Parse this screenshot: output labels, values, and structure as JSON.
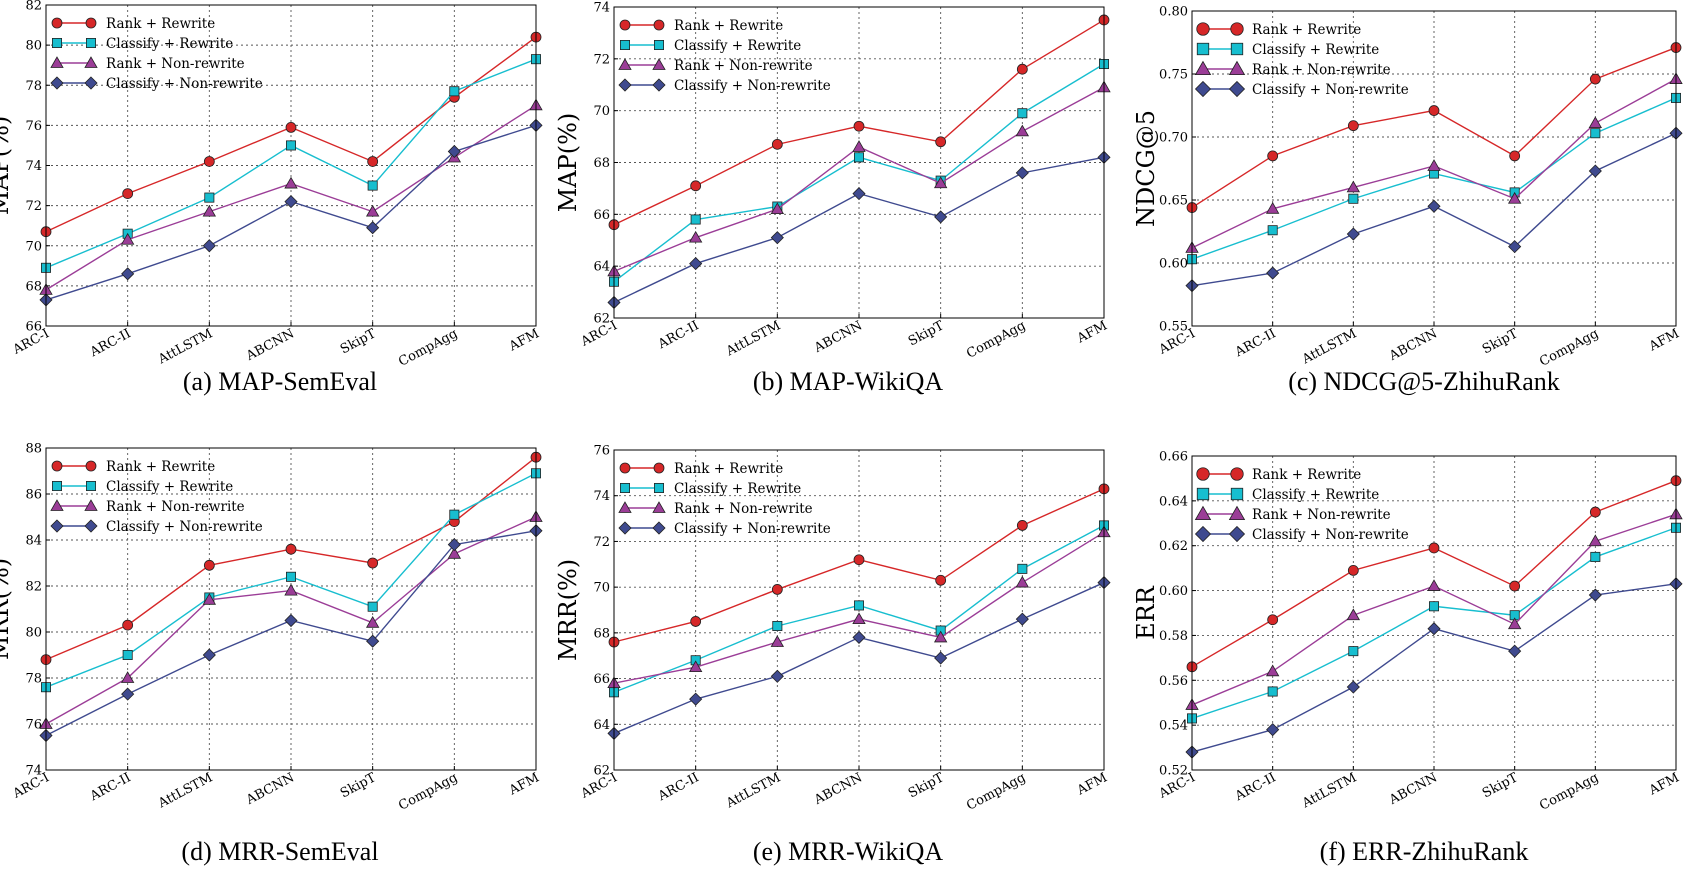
{
  "colors": {
    "rank_rewrite": "#d62728",
    "classify_rewrite": "#17becf",
    "rank_nonrewrite": "#9b3d97",
    "classify_nonrewrite": "#3f4a8f"
  },
  "chart_data": [
    {
      "type": "line",
      "title": "(a) MAP-SemEval",
      "ylabel": "MAP(%)",
      "xlabel": "",
      "categories": [
        "ARC-I",
        "ARC-II",
        "AttLSTM",
        "ABCNN",
        "SkipT",
        "CompAgg",
        "AFM"
      ],
      "ylim": [
        66,
        82
      ],
      "yticks": [
        66,
        68,
        70,
        72,
        74,
        76,
        78,
        80,
        82
      ],
      "ytick_labels": [
        "66",
        "68",
        "70",
        "72",
        "74",
        "76",
        "78",
        "80",
        "82"
      ],
      "grid": true,
      "legend_position": "top-left",
      "series": [
        {
          "name": "Rank + Rewrite",
          "marker": "circle",
          "values": [
            70.7,
            72.6,
            74.2,
            75.9,
            74.2,
            77.4,
            80.4
          ]
        },
        {
          "name": "Classify + Rewrite",
          "marker": "square",
          "values": [
            68.9,
            70.6,
            72.4,
            75.0,
            73.0,
            77.7,
            79.3
          ]
        },
        {
          "name": "Rank + Non-rewrite",
          "marker": "triangle",
          "values": [
            67.8,
            70.3,
            71.7,
            73.1,
            71.7,
            74.4,
            77.0
          ]
        },
        {
          "name": "Classify + Non-rewrite",
          "marker": "diamond",
          "values": [
            67.3,
            68.6,
            70.0,
            72.2,
            70.9,
            74.7,
            76.0
          ]
        }
      ]
    },
    {
      "type": "line",
      "title": "(b) MAP-WikiQA",
      "ylabel": "MAP(%)",
      "xlabel": "",
      "categories": [
        "ARC-I",
        "ARC-II",
        "AttLSTM",
        "ABCNN",
        "SkipT",
        "CompAgg",
        "AFM"
      ],
      "ylim": [
        62,
        74
      ],
      "yticks": [
        62,
        64,
        66,
        68,
        70,
        72,
        74
      ],
      "ytick_labels": [
        "62",
        "64",
        "66",
        "68",
        "70",
        "72",
        "74"
      ],
      "grid": true,
      "legend_position": "top-left",
      "series": [
        {
          "name": "Rank + Rewrite",
          "marker": "circle",
          "values": [
            65.6,
            67.1,
            68.7,
            69.4,
            68.8,
            71.6,
            73.5
          ]
        },
        {
          "name": "Classify + Rewrite",
          "marker": "square",
          "values": [
            63.4,
            65.8,
            66.3,
            68.2,
            67.3,
            69.9,
            71.8
          ]
        },
        {
          "name": "Rank + Non-rewrite",
          "marker": "triangle",
          "values": [
            63.8,
            65.1,
            66.2,
            68.6,
            67.2,
            69.2,
            70.9
          ]
        },
        {
          "name": "Classify + Non-rewrite",
          "marker": "diamond",
          "values": [
            62.6,
            64.1,
            65.1,
            66.8,
            65.9,
            67.6,
            68.2
          ]
        }
      ]
    },
    {
      "type": "line",
      "title": "(c) NDCG@5-ZhihuRank",
      "ylabel": "NDCG@5",
      "xlabel": "",
      "categories": [
        "ARC-I",
        "ARC-II",
        "AttLSTM",
        "ABCNN",
        "SkipT",
        "CompAgg",
        "AFM"
      ],
      "ylim": [
        0.55,
        0.8
      ],
      "yticks": [
        0.55,
        0.6,
        0.65,
        0.7,
        0.75,
        0.8
      ],
      "ytick_labels": [
        "0.55",
        "0.60",
        "0.65",
        "0.70",
        "0.75",
        "0.80"
      ],
      "grid": true,
      "legend_position": "top-left",
      "series": [
        {
          "name": "Rank + Rewrite",
          "marker": "circle",
          "values": [
            0.644,
            0.685,
            0.709,
            0.721,
            0.685,
            0.746,
            0.771
          ]
        },
        {
          "name": "Classify + Rewrite",
          "marker": "square",
          "values": [
            0.603,
            0.626,
            0.651,
            0.671,
            0.656,
            0.703,
            0.731
          ]
        },
        {
          "name": "Rank + Non-rewrite",
          "marker": "triangle",
          "values": [
            0.612,
            0.643,
            0.66,
            0.677,
            0.651,
            0.711,
            0.746
          ]
        },
        {
          "name": "Classify + Non-rewrite",
          "marker": "diamond",
          "values": [
            0.582,
            0.592,
            0.623,
            0.645,
            0.613,
            0.673,
            0.703
          ]
        }
      ]
    },
    {
      "type": "line",
      "title": "(d) MRR-SemEval",
      "ylabel": "MRR(%)",
      "xlabel": "",
      "categories": [
        "ARC-I",
        "ARC-II",
        "AttLSTM",
        "ABCNN",
        "SkipT",
        "CompAgg",
        "AFM"
      ],
      "ylim": [
        74,
        88
      ],
      "yticks": [
        74,
        76,
        78,
        80,
        82,
        84,
        86,
        88
      ],
      "ytick_labels": [
        "74",
        "76",
        "78",
        "80",
        "82",
        "84",
        "86",
        "88"
      ],
      "grid": true,
      "legend_position": "top-left",
      "series": [
        {
          "name": "Rank + Rewrite",
          "marker": "circle",
          "values": [
            78.8,
            80.3,
            82.9,
            83.6,
            83.0,
            84.8,
            87.6
          ]
        },
        {
          "name": "Classify + Rewrite",
          "marker": "square",
          "values": [
            77.6,
            79.0,
            81.5,
            82.4,
            81.1,
            85.1,
            86.9
          ]
        },
        {
          "name": "Rank + Non-rewrite",
          "marker": "triangle",
          "values": [
            76.0,
            78.0,
            81.4,
            81.8,
            80.4,
            83.4,
            85.0
          ]
        },
        {
          "name": "Classify + Non-rewrite",
          "marker": "diamond",
          "values": [
            75.5,
            77.3,
            79.0,
            80.5,
            79.6,
            83.8,
            84.4
          ]
        }
      ]
    },
    {
      "type": "line",
      "title": "(e) MRR-WikiQA",
      "ylabel": "MRR(%)",
      "xlabel": "",
      "categories": [
        "ARC-I",
        "ARC-II",
        "AttLSTM",
        "ABCNN",
        "SkipT",
        "CompAgg",
        "AFM"
      ],
      "ylim": [
        62,
        76
      ],
      "yticks": [
        62,
        64,
        66,
        68,
        70,
        72,
        74,
        76
      ],
      "ytick_labels": [
        "62",
        "64",
        "66",
        "68",
        "70",
        "72",
        "74",
        "76"
      ],
      "grid": true,
      "legend_position": "top-left",
      "series": [
        {
          "name": "Rank + Rewrite",
          "marker": "circle",
          "values": [
            67.6,
            68.5,
            69.9,
            71.2,
            70.3,
            72.7,
            74.3
          ]
        },
        {
          "name": "Classify + Rewrite",
          "marker": "square",
          "values": [
            65.4,
            66.8,
            68.3,
            69.2,
            68.1,
            70.8,
            72.7
          ]
        },
        {
          "name": "Rank + Non-rewrite",
          "marker": "triangle",
          "values": [
            65.8,
            66.5,
            67.6,
            68.6,
            67.8,
            70.2,
            72.4
          ]
        },
        {
          "name": "Classify + Non-rewrite",
          "marker": "diamond",
          "values": [
            63.6,
            65.1,
            66.1,
            67.8,
            66.9,
            68.6,
            70.2
          ]
        }
      ]
    },
    {
      "type": "line",
      "title": "(f) ERR-ZhihuRank",
      "ylabel": "ERR",
      "xlabel": "",
      "categories": [
        "ARC-I",
        "ARC-II",
        "AttLSTM",
        "ABCNN",
        "SkipT",
        "CompAgg",
        "AFM"
      ],
      "ylim": [
        0.52,
        0.66
      ],
      "yticks": [
        0.52,
        0.54,
        0.56,
        0.58,
        0.6,
        0.62,
        0.64,
        0.66
      ],
      "ytick_labels": [
        "0.52",
        "0.54",
        "0.56",
        "0.58",
        "0.60",
        "0.62",
        "0.64",
        "0.66"
      ],
      "grid": true,
      "legend_position": "top-left",
      "series": [
        {
          "name": "Rank + Rewrite",
          "marker": "circle",
          "values": [
            0.566,
            0.587,
            0.609,
            0.619,
            0.602,
            0.635,
            0.649
          ]
        },
        {
          "name": "Classify + Rewrite",
          "marker": "square",
          "values": [
            0.543,
            0.555,
            0.573,
            0.593,
            0.589,
            0.615,
            0.628
          ]
        },
        {
          "name": "Rank + Non-rewrite",
          "marker": "triangle",
          "values": [
            0.549,
            0.564,
            0.589,
            0.602,
            0.585,
            0.622,
            0.634
          ]
        },
        {
          "name": "Classify + Non-rewrite",
          "marker": "diamond",
          "values": [
            0.528,
            0.538,
            0.557,
            0.583,
            0.573,
            0.598,
            0.603
          ]
        }
      ]
    }
  ]
}
